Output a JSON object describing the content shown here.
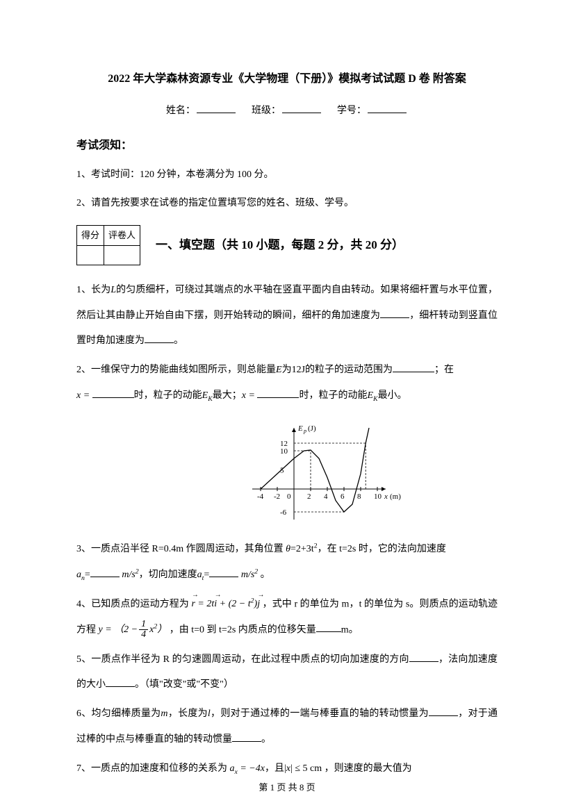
{
  "header": {
    "title": "2022 年大学森林资源专业《大学物理（下册）》模拟考试试题 D 卷 附答案",
    "name_label": "姓名：",
    "class_label": "班级：",
    "id_label": "学号："
  },
  "notice": {
    "heading": "考试须知：",
    "item1": "1、考试时间：120 分钟，本卷满分为 100 分。",
    "item2": "2、请首先按要求在试卷的指定位置填写您的姓名、班级、学号。"
  },
  "score_box": {
    "col1": "得分",
    "col2": "评卷人"
  },
  "section1": {
    "heading": "一、填空题（共 10 小题，每题 2 分，共 20 分）"
  },
  "q1": {
    "pre": "1、长为",
    "var1": "L",
    "mid1": "的匀质细杆，可绕过其端点的水平轴在竖直平面内自由转动。如果将细杆置与水平位置，然后让其由静止开始自由下摆，则开始转动的瞬间，细杆的角加速度为",
    "mid2": "，细杆转动到竖直位置时角加速度为",
    "tail": "。"
  },
  "q2": {
    "line1_pre": "2、一维保守力的势能曲线如图所示，则总能量",
    "E": "E",
    "line1_mid": "为",
    "val": "12J",
    "line1_tail": "的粒子的运动范围为",
    "line1_end": "；在",
    "x_eq": "x =",
    "line2_a": "时，粒子的动能",
    "Ek": "E",
    "Ek_sub": "K",
    "line2_b": "最大；",
    "line2_c": "时，粒子的动能",
    "line2_d": "最小。"
  },
  "chart": {
    "type": "line",
    "y_label": "E_p(J)",
    "x_label": "x(m)",
    "x_ticks": [
      -4,
      -2,
      0,
      2,
      4,
      6,
      8,
      10
    ],
    "y_ticks": [
      -6,
      5,
      10,
      12
    ],
    "xlim": [
      -5,
      11
    ],
    "ylim": [
      -8,
      16
    ],
    "curve_points": [
      [
        -4,
        0
      ],
      [
        -2,
        4
      ],
      [
        0,
        8
      ],
      [
        1.2,
        10
      ],
      [
        2,
        10.2
      ],
      [
        3,
        8
      ],
      [
        4,
        3
      ],
      [
        5,
        -3
      ],
      [
        6,
        -6
      ],
      [
        7,
        -4
      ],
      [
        8,
        4
      ],
      [
        8.6,
        12
      ],
      [
        9,
        16
      ]
    ],
    "dashed_h_lines_y": [
      12,
      10,
      -6
    ],
    "dashed_v_lines_x": [
      2,
      8.6
    ],
    "axis_color": "#000000",
    "curve_color": "#000000",
    "grid_color": "#000000",
    "background_color": "#ffffff",
    "line_width": 1.3,
    "tick_fontsize": 11
  },
  "q3": {
    "pre": "3、一质点沿半径 R=0.4m 作圆周运动，其角位置",
    "theta": "θ",
    "eq": "=2+3t",
    "sup": "2",
    "mid": "，在 t=2s 时，它的法向加速度",
    "an": "a",
    "an_sub": "n",
    "unit": "m/s",
    "unit_sup": "2",
    "mid2": "，切向加速度",
    "at": "a",
    "at_sub": "t",
    "tail": "。"
  },
  "q4": {
    "pre": "4、已知质点的运动方程为",
    "r": "r",
    "eq_mid": " = 2t",
    "i": "i",
    "plus": " + (2 − t",
    "sq": "2",
    "close": ")",
    "j": "j",
    "mid": "，式中 r 的单位为 m，t 的单位为 s。则质点的运动轨迹方程",
    "y": "y",
    "yeq_open": "（2 −",
    "frac_num": "1",
    "frac_den": "4",
    "xsq": "x",
    "xsq_sup": "2",
    "yeq_close": "）",
    "mid2": "，由 t=0 到 t=2s 内质点的位移矢量",
    "unit_m": "m。"
  },
  "q5": {
    "text_a": "5、一质点作半径为 R 的匀速圆周运动，在此过程中质点的切向加速度的方向",
    "text_b": "，法向加速度的大小",
    "text_c": "。（填\"改变\"或\"不变\"）"
  },
  "q6": {
    "pre": "6、均匀细棒质量为",
    "m": "m",
    "mid1": "，长度为",
    "l": "l",
    "mid2": "，则对于通过棒的一端与棒垂直的轴的转动惯量为",
    "mid3": "，对于通过棒的中点与棒垂直的轴的转动惯量",
    "tail": "。"
  },
  "q7": {
    "pre": "7、一质点的加速度和位移的关系为",
    "ax": "a",
    "ax_sub": "x",
    "eq": " = −4x",
    "and": "，且",
    "abs_open": "|",
    "x": "x",
    "abs_close": "|",
    "le": " ≤ 5 cm",
    "tail": "，则速度的最大值为"
  },
  "footer": {
    "text": "第 1 页 共 8 页"
  }
}
